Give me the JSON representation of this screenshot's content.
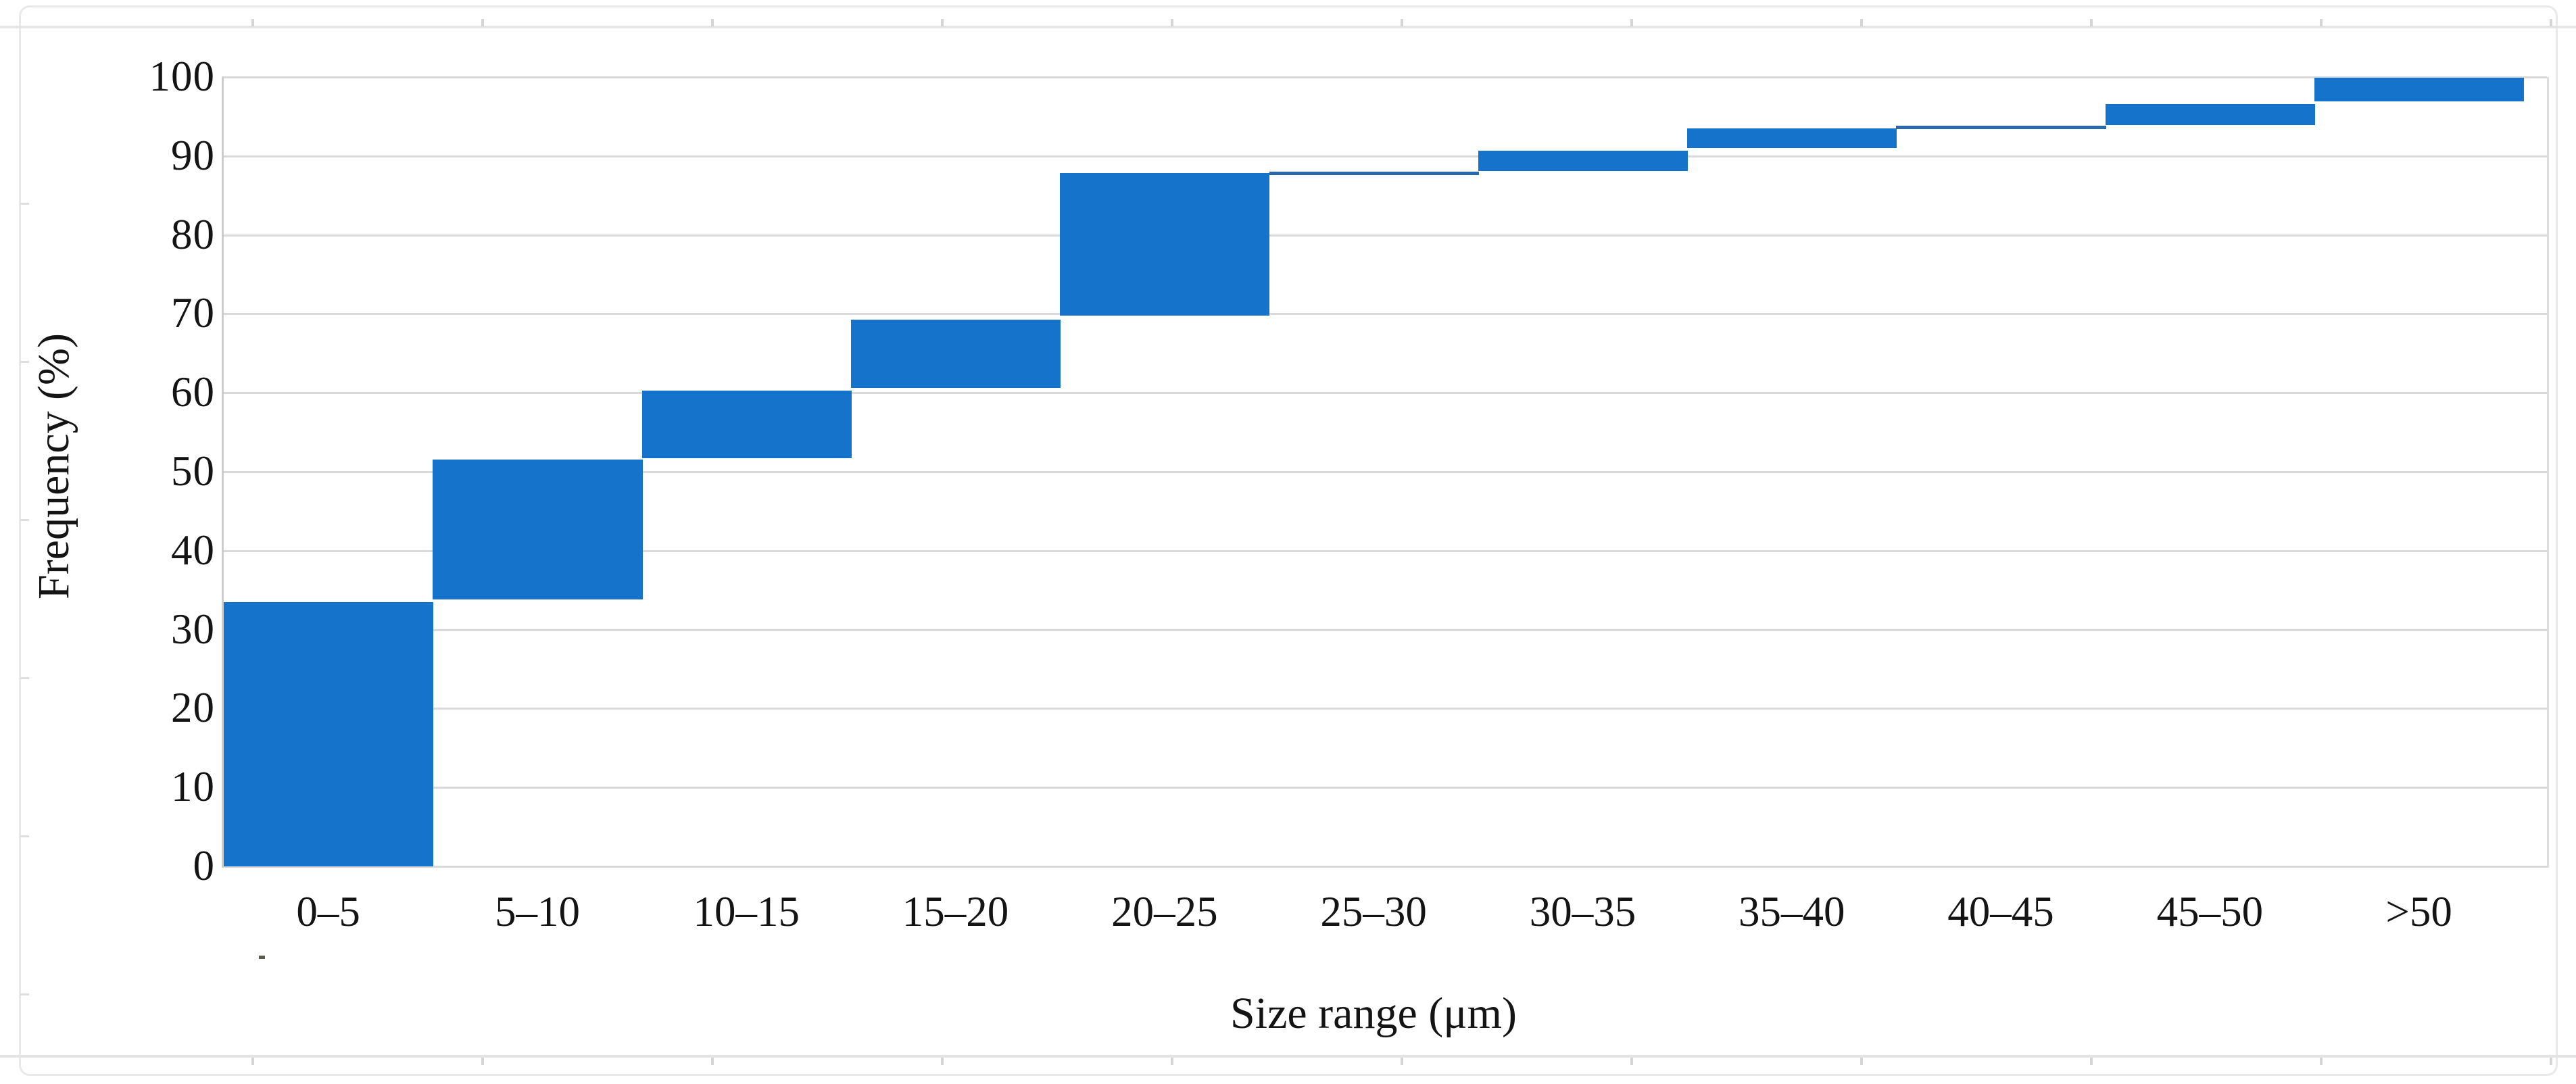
{
  "figure": {
    "kind": "embedded document figure (particle size distribution histogram, cumulative floating bars)",
    "background": "#ffffff",
    "frame_color": "#e9e9e9",
    "ruler_tick_color": "#d5d5d5"
  },
  "chart_data": {
    "type": "bar",
    "variant": "waterfall (floating cumulative histogram segments)",
    "title": "",
    "xlabel": "Size range (μm)",
    "ylabel": "Frequency (%)",
    "categories": [
      "0–5",
      "5–10",
      "10–15",
      "15–20",
      "20–25",
      "25–30",
      "30–35",
      "35–40",
      "40–45",
      "45–50",
      ">50"
    ],
    "values": [
      33.5,
      18.0,
      8.8,
      9.0,
      18.5,
      0.2,
      2.7,
      2.8,
      0.3,
      2.8,
      3.3
    ],
    "cumulative_top": [
      33.5,
      51.5,
      60.3,
      69.3,
      87.8,
      88.0,
      90.7,
      93.5,
      93.8,
      96.6,
      99.9
    ],
    "segments": [
      {
        "category": "0–5",
        "from": 0.0,
        "to": 33.5
      },
      {
        "category": "5–10",
        "from": 33.8,
        "to": 51.5
      },
      {
        "category": "10–15",
        "from": 51.7,
        "to": 60.3
      },
      {
        "category": "15–20",
        "from": 60.6,
        "to": 69.3
      },
      {
        "category": "20–25",
        "from": 69.8,
        "to": 87.8
      },
      {
        "category": "25–30",
        "from": 87.7,
        "to": 88.0
      },
      {
        "category": "30–35",
        "from": 88.1,
        "to": 90.7
      },
      {
        "category": "35–40",
        "from": 91.0,
        "to": 93.5
      },
      {
        "category": "40–45",
        "from": 93.5,
        "to": 93.8
      },
      {
        "category": "45–50",
        "from": 93.9,
        "to": 96.6
      },
      {
        "category": ">50",
        "from": 96.9,
        "to": 99.9
      }
    ],
    "ylim": [
      0,
      100
    ],
    "yticks": [
      0,
      10,
      20,
      30,
      40,
      50,
      60,
      70,
      80,
      90,
      100
    ],
    "grid": "horizontal gridlines on",
    "legend": "none",
    "bar_color": "#1673CB",
    "thin_bar_color": "#2D67AB",
    "gridline_color": "#d9d9d9",
    "text_color": "#141414"
  }
}
